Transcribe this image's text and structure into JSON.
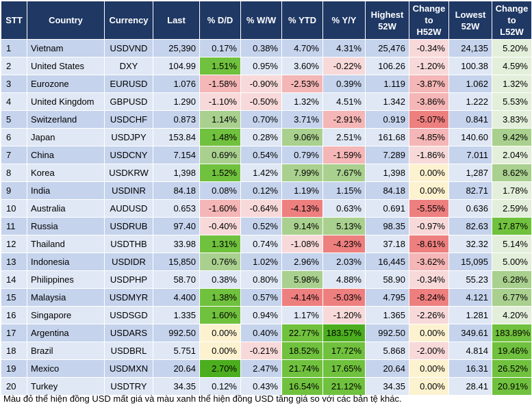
{
  "headers": [
    "STT",
    "Country",
    "Currency",
    "Last",
    "% D/D",
    "% W/W",
    "% YTD",
    "% Y/Y",
    "Highest\n52W",
    "Change\nto\nH52W",
    "Lowest\n52W",
    "Change\nto\nL52W"
  ],
  "rows": [
    {
      "stt": "1",
      "country": "Vietnam",
      "currency": "USDVND",
      "last": "25,390",
      "dd": "0.17%",
      "ww": "0.38%",
      "ytd": "4.70%",
      "yy": "4.31%",
      "high": "25,476",
      "ch_high": "-0.34%",
      "low": "24,135",
      "ch_low": "5.20%"
    },
    {
      "stt": "2",
      "country": "United States",
      "currency": "DXY",
      "last": "104.99",
      "dd": "1.51%",
      "ww": "0.95%",
      "ytd": "3.60%",
      "yy": "-0.22%",
      "high": "106.26",
      "ch_high": "-1.20%",
      "low": "100.38",
      "ch_low": "4.59%"
    },
    {
      "stt": "3",
      "country": "Eurozone",
      "currency": "EURUSD",
      "last": "1.076",
      "dd": "-1.58%",
      "ww": "-0.90%",
      "ytd": "-2.53%",
      "yy": "0.39%",
      "high": "1.119",
      "ch_high": "-3.87%",
      "low": "1.062",
      "ch_low": "1.32%"
    },
    {
      "stt": "4",
      "country": "United Kingdom",
      "currency": "GBPUSD",
      "last": "1.290",
      "dd": "-1.10%",
      "ww": "-0.50%",
      "ytd": "1.32%",
      "yy": "4.51%",
      "high": "1.342",
      "ch_high": "-3.86%",
      "low": "1.222",
      "ch_low": "5.53%"
    },
    {
      "stt": "5",
      "country": "Switzerland",
      "currency": "USDCHF",
      "last": "0.873",
      "dd": "1.14%",
      "ww": "0.70%",
      "ytd": "3.71%",
      "yy": "-2.91%",
      "high": "0.919",
      "ch_high": "-5.07%",
      "low": "0.841",
      "ch_low": "3.83%"
    },
    {
      "stt": "6",
      "country": "Japan",
      "currency": "USDJPY",
      "last": "153.84",
      "dd": "1.48%",
      "ww": "0.28%",
      "ytd": "9.06%",
      "yy": "2.51%",
      "high": "161.68",
      "ch_high": "-4.85%",
      "low": "140.60",
      "ch_low": "9.42%"
    },
    {
      "stt": "7",
      "country": "China",
      "currency": "USDCNY",
      "last": "7.154",
      "dd": "0.69%",
      "ww": "0.54%",
      "ytd": "0.79%",
      "yy": "-1.59%",
      "high": "7.289",
      "ch_high": "-1.86%",
      "low": "7.011",
      "ch_low": "2.04%"
    },
    {
      "stt": "8",
      "country": "Korea",
      "currency": "USDKRW",
      "last": "1,398",
      "dd": "1.52%",
      "ww": "1.42%",
      "ytd": "7.99%",
      "yy": "7.67%",
      "high": "1,398",
      "ch_high": "0.00%",
      "low": "1,287",
      "ch_low": "8.62%"
    },
    {
      "stt": "9",
      "country": "India",
      "currency": "USDINR",
      "last": "84.18",
      "dd": "0.08%",
      "ww": "0.12%",
      "ytd": "1.19%",
      "yy": "1.15%",
      "high": "84.18",
      "ch_high": "0.00%",
      "low": "82.71",
      "ch_low": "1.78%"
    },
    {
      "stt": "10",
      "country": "Australia",
      "currency": "AUDUSD",
      "last": "0.653",
      "dd": "-1.60%",
      "ww": "-0.64%",
      "ytd": "-4.13%",
      "yy": "0.63%",
      "high": "0.691",
      "ch_high": "-5.55%",
      "low": "0.636",
      "ch_low": "2.59%"
    },
    {
      "stt": "11",
      "country": "Russia",
      "currency": "USDRUB",
      "last": "97.40",
      "dd": "-0.40%",
      "ww": "0.52%",
      "ytd": "9.14%",
      "yy": "5.13%",
      "high": "98.35",
      "ch_high": "-0.97%",
      "low": "82.63",
      "ch_low": "17.87%"
    },
    {
      "stt": "12",
      "country": "Thailand",
      "currency": "USDTHB",
      "last": "33.98",
      "dd": "1.31%",
      "ww": "0.74%",
      "ytd": "-1.08%",
      "yy": "-4.23%",
      "high": "37.18",
      "ch_high": "-8.61%",
      "low": "32.32",
      "ch_low": "5.14%"
    },
    {
      "stt": "13",
      "country": "Indonesia",
      "currency": "USDIDR",
      "last": "15,850",
      "dd": "0.76%",
      "ww": "1.02%",
      "ytd": "2.96%",
      "yy": "2.03%",
      "high": "16,445",
      "ch_high": "-3.62%",
      "low": "15,095",
      "ch_low": "5.00%"
    },
    {
      "stt": "14",
      "country": "Philippines",
      "currency": "USDPHP",
      "last": "58.70",
      "dd": "0.38%",
      "ww": "0.80%",
      "ytd": "5.98%",
      "yy": "4.88%",
      "high": "58.90",
      "ch_high": "-0.34%",
      "low": "55.23",
      "ch_low": "6.28%"
    },
    {
      "stt": "15",
      "country": "Malaysia",
      "currency": "USDMYR",
      "last": "4.400",
      "dd": "1.38%",
      "ww": "0.57%",
      "ytd": "-4.14%",
      "yy": "-5.03%",
      "high": "4.795",
      "ch_high": "-8.24%",
      "low": "4.121",
      "ch_low": "6.77%"
    },
    {
      "stt": "16",
      "country": "Singapore",
      "currency": "USDSGD",
      "last": "1.335",
      "dd": "1.60%",
      "ww": "0.94%",
      "ytd": "1.17%",
      "yy": "-1.20%",
      "high": "1.365",
      "ch_high": "-2.26%",
      "low": "1.281",
      "ch_low": "4.20%"
    },
    {
      "stt": "17",
      "country": "Argentina",
      "currency": "USDARS",
      "last": "992.50",
      "dd": "0.00%",
      "ww": "0.40%",
      "ytd": "22.77%",
      "yy": "183.57%",
      "high": "992.50",
      "ch_high": "0.00%",
      "low": "349.61",
      "ch_low": "183.89%"
    },
    {
      "stt": "18",
      "country": "Brazil",
      "currency": "USDBRL",
      "last": "5.751",
      "dd": "0.00%",
      "ww": "-0.21%",
      "ytd": "18.52%",
      "yy": "17.72%",
      "high": "5.868",
      "ch_high": "-2.00%",
      "low": "4.814",
      "ch_low": "19.46%"
    },
    {
      "stt": "19",
      "country": "Mexico",
      "currency": "USDMXN",
      "last": "20.64",
      "dd": "2.70%",
      "ww": "2.47%",
      "ytd": "21.74%",
      "yy": "17.65%",
      "high": "20.64",
      "ch_high": "0.00%",
      "low": "16.31",
      "ch_low": "26.52%"
    },
    {
      "stt": "20",
      "country": "Turkey",
      "currency": "USDTRY",
      "last": "34.35",
      "dd": "0.12%",
      "ww": "0.43%",
      "ytd": "16.54%",
      "yy": "21.12%",
      "high": "34.35",
      "ch_high": "0.00%",
      "low": "28.41",
      "ch_low": "20.91%"
    }
  ],
  "footnote": "Màu đỏ thể hiện đồng USD mất giá và màu xanh thể hiện đồng USD tăng giá so với các bản tệ khác.",
  "colors": {
    "header_bg": "#1f3864",
    "row_odd": "#c5d3ec",
    "row_even": "#e0e8f5",
    "positive_light": "#e3efda",
    "positive_strong": "#70c13d",
    "negative_light": "#f8d9d9",
    "negative_strong": "#ee7f7f",
    "zero": "#fdf2d0"
  }
}
